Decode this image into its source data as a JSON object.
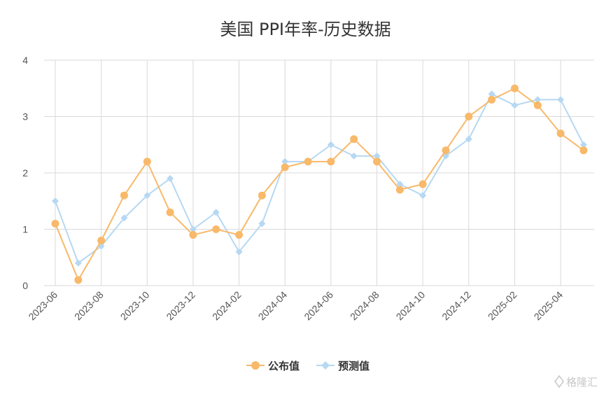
{
  "chart_data": {
    "type": "line",
    "title": "美国 PPI年率-历史数据",
    "xlabel": "",
    "ylabel": "",
    "ylim": [
      0,
      4
    ],
    "yticks": [
      "0",
      "1",
      "2",
      "3",
      "4"
    ],
    "grid": true,
    "legend_position": "bottom-center",
    "x": [
      "2023-06",
      "2023-07",
      "2023-08",
      "2023-09",
      "2023-10",
      "2023-11",
      "2023-12",
      "2024-01",
      "2024-02",
      "2024-03",
      "2024-04",
      "2024-05",
      "2024-06",
      "2024-07",
      "2024-08",
      "2024-09",
      "2024-10",
      "2024-11",
      "2024-12",
      "2025-01",
      "2025-02",
      "2025-03",
      "2025-04",
      "2025-05"
    ],
    "xticks": [
      "2023-06",
      "2023-08",
      "2023-10",
      "2023-12",
      "2024-02",
      "2024-04",
      "2024-06",
      "2024-08",
      "2024-10",
      "2024-12",
      "2025-02",
      "2025-04"
    ],
    "series": [
      {
        "name": "公布值",
        "color": "#f8b96a",
        "marker": "circle",
        "values": [
          1.1,
          0.1,
          0.8,
          1.6,
          2.2,
          1.3,
          0.9,
          1.0,
          0.9,
          1.6,
          2.1,
          2.2,
          2.2,
          2.6,
          2.2,
          1.7,
          1.8,
          2.4,
          3.0,
          3.3,
          3.5,
          3.2,
          2.7,
          2.4
        ]
      },
      {
        "name": "预测值",
        "color": "#b6d8f2",
        "marker": "diamond",
        "values": [
          1.5,
          0.4,
          0.7,
          1.2,
          1.6,
          1.9,
          1.0,
          1.3,
          0.6,
          1.1,
          2.2,
          2.2,
          2.5,
          2.3,
          2.3,
          1.8,
          1.6,
          2.3,
          2.6,
          3.4,
          3.2,
          3.3,
          3.3,
          2.5
        ]
      }
    ]
  },
  "watermark": "格隆汇"
}
